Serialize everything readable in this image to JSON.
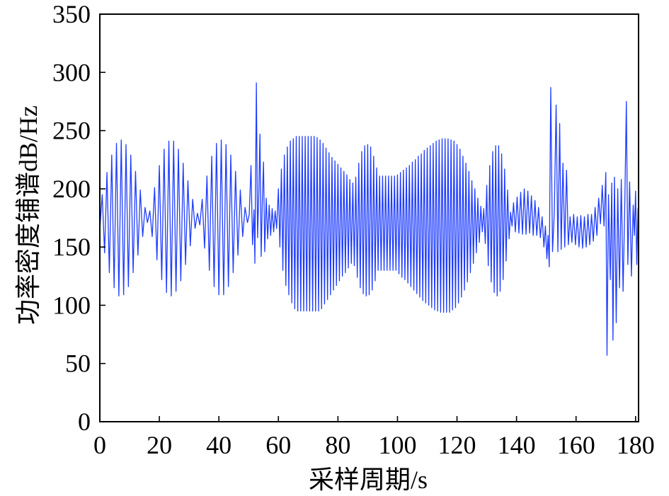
{
  "chart_data": {
    "type": "line",
    "xlabel": "采样周期/s",
    "ylabel": "功率密度铺谱dB/Hz",
    "xlim": [
      0,
      181
    ],
    "ylim": [
      0,
      350
    ],
    "xticks": [
      0,
      20,
      40,
      60,
      80,
      100,
      120,
      140,
      160,
      180
    ],
    "yticks": [
      0,
      50,
      100,
      150,
      200,
      250,
      300,
      350
    ],
    "grid": false,
    "series": [
      {
        "color": "#1e3cff",
        "points": [
          [
            0,
            165
          ],
          [
            0.8,
            195
          ],
          [
            1.6,
            145
          ],
          [
            2.4,
            214
          ],
          [
            3.2,
            128
          ],
          [
            4.0,
            229
          ],
          [
            4.8,
            115
          ],
          [
            5.6,
            239
          ],
          [
            6.4,
            108
          ],
          [
            7.2,
            242
          ],
          [
            8.0,
            109
          ],
          [
            8.8,
            238
          ],
          [
            9.6,
            116
          ],
          [
            10.4,
            229
          ],
          [
            11.2,
            128
          ],
          [
            12.0,
            215
          ],
          [
            12.8,
            143
          ],
          [
            13.6,
            199
          ],
          [
            14.4,
            159
          ],
          [
            15.2,
            184
          ],
          [
            16.0,
            171
          ],
          [
            16.8,
            181
          ],
          [
            17.6,
            159
          ],
          [
            18.4,
            201
          ],
          [
            19.2,
            139
          ],
          [
            20.0,
            220
          ],
          [
            20.8,
            122
          ],
          [
            21.6,
            234
          ],
          [
            22.4,
            111
          ],
          [
            23.2,
            241
          ],
          [
            24.0,
            108
          ],
          [
            24.8,
            241
          ],
          [
            25.6,
            112
          ],
          [
            26.4,
            234
          ],
          [
            27.2,
            121
          ],
          [
            28.0,
            222
          ],
          [
            28.8,
            135
          ],
          [
            29.6,
            207
          ],
          [
            30.4,
            151
          ],
          [
            31.2,
            191
          ],
          [
            32.0,
            166
          ],
          [
            32.8,
            179
          ],
          [
            33.6,
            169
          ],
          [
            34.4,
            191
          ],
          [
            35.2,
            149
          ],
          [
            36.0,
            211
          ],
          [
            36.8,
            130
          ],
          [
            37.6,
            228
          ],
          [
            38.4,
            116
          ],
          [
            39.2,
            239
          ],
          [
            40.0,
            109
          ],
          [
            40.8,
            242
          ],
          [
            41.6,
            109
          ],
          [
            42.4,
            238
          ],
          [
            43.2,
            116
          ],
          [
            44.0,
            229
          ],
          [
            44.8,
            128
          ],
          [
            45.6,
            215
          ],
          [
            46.4,
            143
          ],
          [
            47.2,
            199
          ],
          [
            48.0,
            159
          ],
          [
            48.8,
            184
          ],
          [
            49.6,
            171
          ],
          [
            50.2,
            178
          ],
          [
            50.8,
            220
          ],
          [
            51.3,
            152
          ],
          [
            51.8,
            182
          ],
          [
            52.1,
            136
          ],
          [
            52.6,
            291
          ],
          [
            53.0,
            158
          ],
          [
            53.4,
            195
          ],
          [
            53.8,
            247
          ],
          [
            54.2,
            142
          ],
          [
            54.6,
            190
          ],
          [
            55.0,
            223
          ],
          [
            55.4,
            146
          ],
          [
            55.9,
            192
          ],
          [
            56.4,
            157
          ],
          [
            56.9,
            186
          ],
          [
            57.4,
            160
          ],
          [
            57.9,
            183
          ],
          [
            58.4,
            163
          ],
          [
            58.9,
            181
          ],
          [
            59.4,
            166
          ],
          [
            60.0,
            200
          ],
          [
            60.5,
            150
          ],
          [
            61.0,
            217
          ],
          [
            61.5,
            130
          ],
          [
            62.0,
            229
          ],
          [
            62.5,
            117
          ],
          [
            63.0,
            236
          ],
          [
            63.5,
            109
          ],
          [
            64.0,
            241
          ],
          [
            64.5,
            102
          ],
          [
            65.0,
            243
          ],
          [
            65.5,
            97
          ],
          [
            66.0,
            245
          ],
          [
            66.5,
            95
          ],
          [
            67.0,
            245
          ],
          [
            67.5,
            95
          ],
          [
            68.0,
            245
          ],
          [
            68.5,
            95
          ],
          [
            69.0,
            245
          ],
          [
            69.5,
            95
          ],
          [
            70.0,
            245
          ],
          [
            70.5,
            95
          ],
          [
            71.0,
            245
          ],
          [
            71.5,
            95
          ],
          [
            72.0,
            245
          ],
          [
            72.5,
            95
          ],
          [
            73.0,
            244
          ],
          [
            73.5,
            95
          ],
          [
            74.0,
            242
          ],
          [
            74.5,
            97
          ],
          [
            75.0,
            239
          ],
          [
            75.5,
            101
          ],
          [
            76.0,
            235
          ],
          [
            76.5,
            105
          ],
          [
            77.0,
            231
          ],
          [
            77.5,
            109
          ],
          [
            78.0,
            227
          ],
          [
            78.5,
            113
          ],
          [
            79.0,
            224
          ],
          [
            79.5,
            117
          ],
          [
            80.0,
            221
          ],
          [
            80.5,
            121
          ],
          [
            81.0,
            218
          ],
          [
            81.5,
            125
          ],
          [
            82.0,
            215
          ],
          [
            82.5,
            128
          ],
          [
            83.0,
            212
          ],
          [
            83.5,
            132
          ],
          [
            84.0,
            208
          ],
          [
            84.5,
            136
          ],
          [
            85.0,
            205
          ],
          [
            85.5,
            134
          ],
          [
            86.0,
            210
          ],
          [
            86.5,
            124
          ],
          [
            87.0,
            222
          ],
          [
            87.5,
            115
          ],
          [
            88.0,
            232
          ],
          [
            88.5,
            110
          ],
          [
            89.0,
            237
          ],
          [
            89.5,
            108
          ],
          [
            90.0,
            238
          ],
          [
            90.5,
            109
          ],
          [
            91.0,
            236
          ],
          [
            91.5,
            113
          ],
          [
            92.0,
            228
          ],
          [
            92.5,
            121
          ],
          [
            93.0,
            218
          ],
          [
            93.5,
            130
          ],
          [
            94.0,
            211
          ],
          [
            94.5,
            130
          ],
          [
            95.0,
            211
          ],
          [
            95.5,
            130
          ],
          [
            96.0,
            211
          ],
          [
            96.5,
            130
          ],
          [
            97.0,
            211
          ],
          [
            97.5,
            130
          ],
          [
            98.0,
            211
          ],
          [
            98.5,
            130
          ],
          [
            99.0,
            211
          ],
          [
            99.5,
            130
          ],
          [
            100.0,
            212
          ],
          [
            100.5,
            127
          ],
          [
            101.0,
            214
          ],
          [
            101.5,
            124
          ],
          [
            102.0,
            216
          ],
          [
            102.5,
            122
          ],
          [
            103.0,
            218
          ],
          [
            103.5,
            119
          ],
          [
            104.0,
            220
          ],
          [
            104.5,
            116
          ],
          [
            105.0,
            223
          ],
          [
            105.5,
            113
          ],
          [
            106.0,
            225
          ],
          [
            106.5,
            110
          ],
          [
            107.0,
            228
          ],
          [
            107.5,
            107
          ],
          [
            108.0,
            230
          ],
          [
            108.5,
            104
          ],
          [
            109.0,
            233
          ],
          [
            109.5,
            102
          ],
          [
            110.0,
            235
          ],
          [
            110.5,
            100
          ],
          [
            111.0,
            237
          ],
          [
            111.5,
            98
          ],
          [
            112.0,
            239
          ],
          [
            112.5,
            96
          ],
          [
            113.0,
            241
          ],
          [
            113.5,
            95
          ],
          [
            114.0,
            242
          ],
          [
            114.5,
            94
          ],
          [
            115.0,
            243
          ],
          [
            115.5,
            94
          ],
          [
            116.0,
            243
          ],
          [
            116.5,
            94
          ],
          [
            117.0,
            243
          ],
          [
            117.5,
            94
          ],
          [
            118.0,
            242
          ],
          [
            118.5,
            96
          ],
          [
            119.0,
            241
          ],
          [
            119.5,
            98
          ],
          [
            120.0,
            238
          ],
          [
            120.5,
            102
          ],
          [
            121.0,
            234
          ],
          [
            121.5,
            107
          ],
          [
            122.0,
            228
          ],
          [
            122.5,
            113
          ],
          [
            123.0,
            222
          ],
          [
            123.5,
            120
          ],
          [
            124.0,
            215
          ],
          [
            124.5,
            128
          ],
          [
            125.0,
            207
          ],
          [
            125.5,
            136
          ],
          [
            126.0,
            200
          ],
          [
            126.5,
            145
          ],
          [
            127.0,
            192
          ],
          [
            127.5,
            154
          ],
          [
            128.0,
            185
          ],
          [
            128.5,
            163
          ],
          [
            129.0,
            183
          ],
          [
            129.5,
            153
          ],
          [
            130.0,
            203
          ],
          [
            130.5,
            134
          ],
          [
            131.0,
            220
          ],
          [
            131.5,
            120
          ],
          [
            132.0,
            232
          ],
          [
            132.5,
            111
          ],
          [
            133.0,
            237
          ],
          [
            133.5,
            108
          ],
          [
            134.0,
            237
          ],
          [
            134.5,
            112
          ],
          [
            135.0,
            230
          ],
          [
            135.5,
            122
          ],
          [
            136.0,
            217
          ],
          [
            136.5,
            138
          ],
          [
            137.0,
            199
          ],
          [
            137.5,
            157
          ],
          [
            138.0,
            180
          ],
          [
            138.5,
            168
          ],
          [
            139.0,
            188
          ],
          [
            139.6,
            163
          ],
          [
            140.2,
            193
          ],
          [
            140.8,
            162
          ],
          [
            141.4,
            197
          ],
          [
            142.0,
            161
          ],
          [
            142.6,
            200
          ],
          [
            143.2,
            161
          ],
          [
            143.8,
            198
          ],
          [
            144.4,
            162
          ],
          [
            145.0,
            194
          ],
          [
            145.6,
            160
          ],
          [
            146.2,
            190
          ],
          [
            146.8,
            160
          ],
          [
            147.4,
            184
          ],
          [
            148.0,
            158
          ],
          [
            148.6,
            176
          ],
          [
            149.2,
            150
          ],
          [
            149.7,
            168
          ],
          [
            150.2,
            140
          ],
          [
            150.6,
            160
          ],
          [
            151.0,
            133
          ],
          [
            151.5,
            287
          ],
          [
            152.1,
            146
          ],
          [
            152.7,
            180
          ],
          [
            153.3,
            272
          ],
          [
            153.9,
            146
          ],
          [
            154.5,
            256
          ],
          [
            155.0,
            148
          ],
          [
            155.6,
            222
          ],
          [
            156.2,
            150
          ],
          [
            156.8,
            216
          ],
          [
            157.4,
            152
          ],
          [
            158.0,
            176
          ],
          [
            158.6,
            154
          ],
          [
            159.2,
            178
          ],
          [
            159.8,
            152
          ],
          [
            160.4,
            176
          ],
          [
            161.0,
            150
          ],
          [
            161.6,
            177
          ],
          [
            162.2,
            149
          ],
          [
            162.8,
            176
          ],
          [
            163.4,
            150
          ],
          [
            164.0,
            178
          ],
          [
            164.6,
            152
          ],
          [
            165.2,
            178
          ],
          [
            165.8,
            155
          ],
          [
            166.4,
            184
          ],
          [
            167.0,
            160
          ],
          [
            167.6,
            192
          ],
          [
            168.2,
            170
          ],
          [
            168.8,
            203
          ],
          [
            169.4,
            168
          ],
          [
            170.0,
            214
          ],
          [
            170.4,
            57
          ],
          [
            170.9,
            195
          ],
          [
            171.5,
            122
          ],
          [
            172.0,
            205
          ],
          [
            172.4,
            70
          ],
          [
            172.9,
            210
          ],
          [
            173.5,
            85
          ],
          [
            174.0,
            200
          ],
          [
            174.6,
            115
          ],
          [
            175.2,
            208
          ],
          [
            175.8,
            112
          ],
          [
            176.4,
            190
          ],
          [
            176.9,
            275
          ],
          [
            177.4,
            135
          ],
          [
            178.0,
            206
          ],
          [
            178.6,
            125
          ],
          [
            179.2,
            186
          ],
          [
            179.6,
            160
          ],
          [
            180.0,
            198
          ],
          [
            180.4,
            135
          ],
          [
            180.8,
            183
          ],
          [
            181.0,
            133
          ]
        ]
      }
    ]
  }
}
